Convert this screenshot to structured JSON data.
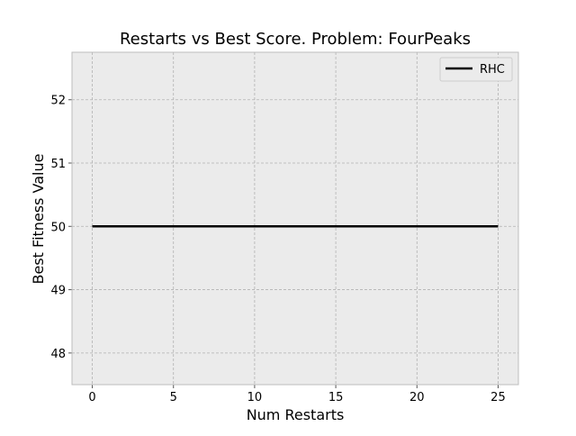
{
  "chart_data": {
    "type": "line",
    "title": "Restarts vs Best Score.  Problem: FourPeaks",
    "xlabel": "Num Restarts",
    "ylabel": "Best Fitness Value",
    "xlim": [
      -1.25,
      26.25
    ],
    "ylim": [
      47.5,
      52.75
    ],
    "xticks": [
      0,
      5,
      10,
      15,
      20,
      25
    ],
    "yticks": [
      48,
      49,
      50,
      51,
      52
    ],
    "grid": true,
    "legend_position": "top-right",
    "series": [
      {
        "name": "RHC",
        "color": "#000000",
        "x": [
          0,
          25
        ],
        "y": [
          50,
          50
        ]
      }
    ]
  },
  "colors": {
    "plot_background": "#ebebeb",
    "grid": "#b2b2b2",
    "axes_edge": "#bcbcbc"
  }
}
